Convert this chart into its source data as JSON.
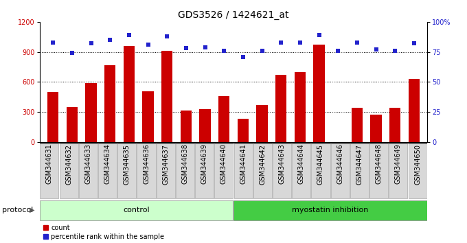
{
  "title": "GDS3526 / 1424621_at",
  "samples": [
    "GSM344631",
    "GSM344632",
    "GSM344633",
    "GSM344634",
    "GSM344635",
    "GSM344636",
    "GSM344637",
    "GSM344638",
    "GSM344639",
    "GSM344640",
    "GSM344641",
    "GSM344642",
    "GSM344643",
    "GSM344644",
    "GSM344645",
    "GSM344646",
    "GSM344647",
    "GSM344648",
    "GSM344649",
    "GSM344650"
  ],
  "counts": [
    500,
    350,
    590,
    770,
    960,
    510,
    910,
    315,
    330,
    460,
    235,
    370,
    670,
    700,
    970,
    0,
    340,
    275,
    340,
    630
  ],
  "percentiles": [
    83,
    74,
    82,
    85,
    89,
    81,
    88,
    78,
    79,
    76,
    71,
    76,
    83,
    83,
    89,
    76,
    83,
    77,
    76,
    82
  ],
  "control_count": 10,
  "myostatin_count": 10,
  "bar_color": "#cc0000",
  "dot_color": "#2222cc",
  "bg_color": "#ffffff",
  "left_ylim": [
    0,
    1200
  ],
  "left_yticks": [
    0,
    300,
    600,
    900,
    1200
  ],
  "right_ylim": [
    0,
    100
  ],
  "right_yticks": [
    0,
    25,
    50,
    75,
    100
  ],
  "control_label": "control",
  "myostatin_label": "myostatin inhibition",
  "protocol_label": "protocol",
  "legend_count": "count",
  "legend_percentile": "percentile rank within the sample",
  "control_bg": "#ccffcc",
  "myostatin_bg": "#44cc44",
  "xtick_label_bg": "#d0d0d0",
  "bar_width": 0.6,
  "title_fontsize": 10,
  "tick_fontsize": 7,
  "label_fontsize": 8
}
